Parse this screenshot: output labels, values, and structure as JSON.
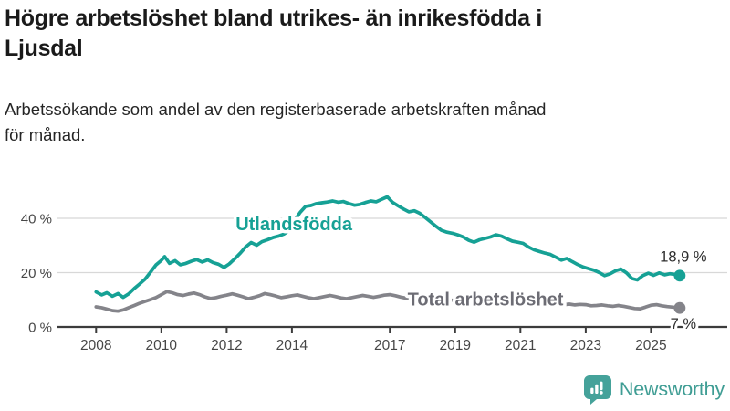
{
  "header": {
    "title": "Högre arbetslöshet bland utrikes- än inrikesfödda i\nLjusdal",
    "subtitle": "Arbetssökande som andel av den registerbaserade arbetskraften månad\nför månad."
  },
  "colors": {
    "accent_teal": "#16a195",
    "series_gray": "#84848a",
    "series_gray_label": "#6c6c74",
    "grid": "#d8d8d8",
    "axis": "#3c3c3c",
    "axis_text": "#474747",
    "annotation_text": "#2e2e2e",
    "logo_teal": "#45a29a",
    "logo_text_teal": "#3f9d94"
  },
  "branding": {
    "logo_text": "Newsworthy",
    "logo_icon": "speech-bubble-with-bar-chart-and-exclamation"
  },
  "chart_data": {
    "type": "line",
    "title": "Högre arbetslöshet bland utrikes- än inrikesfödda i Ljusdal",
    "subtitle": "Arbetssökande som andel av den registerbaserade arbetskraften månad för månad.",
    "unit": "%",
    "grid": true,
    "legend_position": "inline-labels",
    "x_axis": {
      "label": "",
      "ticks": [
        2008,
        2010,
        2012,
        2014,
        2017,
        2019,
        2021,
        2023,
        2025
      ],
      "range_years": [
        2006.8,
        2027.3
      ]
    },
    "y_axis": {
      "label": "",
      "ticks": [
        "0 %",
        "20 %",
        "40 %"
      ],
      "tick_values": [
        0,
        20,
        40
      ],
      "ylim": [
        0,
        50
      ]
    },
    "series": [
      {
        "name": "Utlandsfödda",
        "color": "#16a195",
        "label_color": "#16a195",
        "end_label": "18,9 %",
        "end_value": 18.9,
        "label_anchor": {
          "x": 2014.06,
          "y": 38.0
        },
        "points": [
          [
            2008.0,
            12.9
          ],
          [
            2008.17,
            11.8
          ],
          [
            2008.33,
            12.6
          ],
          [
            2008.5,
            11.3
          ],
          [
            2008.67,
            12.3
          ],
          [
            2008.83,
            10.9
          ],
          [
            2009.0,
            12.2
          ],
          [
            2009.17,
            14.2
          ],
          [
            2009.33,
            15.8
          ],
          [
            2009.5,
            17.6
          ],
          [
            2009.67,
            20.2
          ],
          [
            2009.83,
            22.8
          ],
          [
            2010.0,
            24.5
          ],
          [
            2010.1,
            25.9
          ],
          [
            2010.25,
            23.4
          ],
          [
            2010.42,
            24.4
          ],
          [
            2010.58,
            22.9
          ],
          [
            2010.75,
            23.4
          ],
          [
            2010.92,
            24.2
          ],
          [
            2011.08,
            24.8
          ],
          [
            2011.25,
            23.9
          ],
          [
            2011.42,
            24.7
          ],
          [
            2011.58,
            23.7
          ],
          [
            2011.75,
            23.1
          ],
          [
            2011.92,
            21.9
          ],
          [
            2012.08,
            23.2
          ],
          [
            2012.25,
            25.1
          ],
          [
            2012.42,
            27.2
          ],
          [
            2012.58,
            29.4
          ],
          [
            2012.75,
            31.1
          ],
          [
            2012.92,
            30.1
          ],
          [
            2013.08,
            31.4
          ],
          [
            2013.25,
            32.1
          ],
          [
            2013.42,
            32.9
          ],
          [
            2013.58,
            33.4
          ],
          [
            2013.75,
            34.2
          ],
          [
            2013.92,
            35.6
          ],
          [
            2014.08,
            39.2
          ],
          [
            2014.25,
            42.2
          ],
          [
            2014.42,
            44.4
          ],
          [
            2014.58,
            44.7
          ],
          [
            2014.75,
            45.4
          ],
          [
            2014.92,
            45.7
          ],
          [
            2015.08,
            46.0
          ],
          [
            2015.25,
            46.4
          ],
          [
            2015.42,
            45.9
          ],
          [
            2015.58,
            46.2
          ],
          [
            2015.75,
            45.4
          ],
          [
            2015.92,
            44.8
          ],
          [
            2016.08,
            45.1
          ],
          [
            2016.25,
            45.8
          ],
          [
            2016.42,
            46.4
          ],
          [
            2016.58,
            46.1
          ],
          [
            2016.75,
            47.0
          ],
          [
            2016.92,
            47.9
          ],
          [
            2017.08,
            45.9
          ],
          [
            2017.25,
            44.6
          ],
          [
            2017.42,
            43.4
          ],
          [
            2017.58,
            42.4
          ],
          [
            2017.75,
            42.8
          ],
          [
            2017.92,
            41.8
          ],
          [
            2018.08,
            40.3
          ],
          [
            2018.25,
            38.7
          ],
          [
            2018.42,
            37.0
          ],
          [
            2018.58,
            35.6
          ],
          [
            2018.75,
            34.9
          ],
          [
            2018.92,
            34.5
          ],
          [
            2019.08,
            33.9
          ],
          [
            2019.25,
            33.1
          ],
          [
            2019.42,
            31.9
          ],
          [
            2019.58,
            31.2
          ],
          [
            2019.75,
            32.1
          ],
          [
            2019.92,
            32.6
          ],
          [
            2020.08,
            33.1
          ],
          [
            2020.25,
            33.9
          ],
          [
            2020.42,
            33.4
          ],
          [
            2020.58,
            32.5
          ],
          [
            2020.75,
            31.6
          ],
          [
            2020.92,
            31.2
          ],
          [
            2021.08,
            30.8
          ],
          [
            2021.25,
            29.4
          ],
          [
            2021.42,
            28.4
          ],
          [
            2021.58,
            27.8
          ],
          [
            2021.75,
            27.2
          ],
          [
            2021.92,
            26.7
          ],
          [
            2022.08,
            25.7
          ],
          [
            2022.25,
            24.6
          ],
          [
            2022.42,
            25.2
          ],
          [
            2022.58,
            24.1
          ],
          [
            2022.75,
            23.0
          ],
          [
            2022.92,
            22.1
          ],
          [
            2023.08,
            21.5
          ],
          [
            2023.25,
            20.9
          ],
          [
            2023.42,
            20.0
          ],
          [
            2023.58,
            18.9
          ],
          [
            2023.75,
            19.6
          ],
          [
            2023.92,
            20.7
          ],
          [
            2024.08,
            21.3
          ],
          [
            2024.25,
            19.9
          ],
          [
            2024.42,
            17.8
          ],
          [
            2024.58,
            17.3
          ],
          [
            2024.75,
            18.9
          ],
          [
            2024.92,
            19.8
          ],
          [
            2025.08,
            19.0
          ],
          [
            2025.25,
            19.9
          ],
          [
            2025.42,
            19.2
          ],
          [
            2025.58,
            19.6
          ],
          [
            2025.75,
            19.3
          ],
          [
            2025.88,
            18.9
          ]
        ]
      },
      {
        "name": "Total arbetslöshet",
        "color": "#84848a",
        "label_color": "#6c6c74",
        "end_label": "7 %",
        "end_value": 7.0,
        "label_anchor": {
          "x": 2019.93,
          "y": 10.25
        },
        "points": [
          [
            2008.0,
            7.4
          ],
          [
            2008.17,
            7.1
          ],
          [
            2008.33,
            6.6
          ],
          [
            2008.5,
            6.0
          ],
          [
            2008.67,
            5.8
          ],
          [
            2008.83,
            6.3
          ],
          [
            2009.0,
            7.1
          ],
          [
            2009.17,
            7.9
          ],
          [
            2009.33,
            8.7
          ],
          [
            2009.5,
            9.4
          ],
          [
            2009.67,
            10.1
          ],
          [
            2009.83,
            10.8
          ],
          [
            2010.0,
            11.9
          ],
          [
            2010.17,
            13.0
          ],
          [
            2010.33,
            12.6
          ],
          [
            2010.5,
            11.9
          ],
          [
            2010.67,
            11.6
          ],
          [
            2010.83,
            12.1
          ],
          [
            2011.0,
            12.5
          ],
          [
            2011.17,
            11.9
          ],
          [
            2011.33,
            11.1
          ],
          [
            2011.5,
            10.5
          ],
          [
            2011.67,
            10.8
          ],
          [
            2011.83,
            11.3
          ],
          [
            2012.0,
            11.7
          ],
          [
            2012.17,
            12.2
          ],
          [
            2012.33,
            11.7
          ],
          [
            2012.5,
            11.1
          ],
          [
            2012.67,
            10.4
          ],
          [
            2012.83,
            10.9
          ],
          [
            2013.0,
            11.5
          ],
          [
            2013.17,
            12.3
          ],
          [
            2013.33,
            11.9
          ],
          [
            2013.5,
            11.4
          ],
          [
            2013.67,
            10.8
          ],
          [
            2013.83,
            11.1
          ],
          [
            2014.0,
            11.5
          ],
          [
            2014.17,
            11.8
          ],
          [
            2014.33,
            11.3
          ],
          [
            2014.5,
            10.8
          ],
          [
            2014.67,
            10.4
          ],
          [
            2014.83,
            10.8
          ],
          [
            2015.0,
            11.2
          ],
          [
            2015.17,
            11.6
          ],
          [
            2015.33,
            11.2
          ],
          [
            2015.5,
            10.7
          ],
          [
            2015.67,
            10.4
          ],
          [
            2015.83,
            10.8
          ],
          [
            2016.0,
            11.2
          ],
          [
            2016.17,
            11.6
          ],
          [
            2016.33,
            11.3
          ],
          [
            2016.5,
            10.9
          ],
          [
            2016.67,
            11.3
          ],
          [
            2016.83,
            11.7
          ],
          [
            2017.0,
            11.9
          ],
          [
            2017.17,
            11.5
          ],
          [
            2017.33,
            11.0
          ],
          [
            2017.5,
            10.6
          ],
          [
            2017.67,
            10.3
          ],
          [
            2017.83,
            10.6
          ],
          [
            2018.0,
            10.8
          ],
          [
            2018.17,
            10.4
          ],
          [
            2018.33,
            9.9
          ],
          [
            2018.5,
            9.6
          ],
          [
            2018.67,
            9.4
          ],
          [
            2018.83,
            9.7
          ],
          [
            2019.0,
            10.0
          ],
          [
            2019.17,
            9.7
          ],
          [
            2019.33,
            9.3
          ],
          [
            2019.5,
            9.1
          ],
          [
            2019.67,
            9.3
          ],
          [
            2019.83,
            9.6
          ],
          [
            2020.0,
            9.9
          ],
          [
            2020.17,
            10.7
          ],
          [
            2020.33,
            11.1
          ],
          [
            2020.5,
            10.9
          ],
          [
            2020.67,
            10.6
          ],
          [
            2020.83,
            10.8
          ],
          [
            2021.0,
            10.5
          ],
          [
            2021.17,
            10.1
          ],
          [
            2021.33,
            9.7
          ],
          [
            2021.5,
            9.3
          ],
          [
            2021.67,
            9.0
          ],
          [
            2021.83,
            8.8
          ],
          [
            2022.0,
            8.6
          ],
          [
            2022.17,
            8.4
          ],
          [
            2022.33,
            8.2
          ],
          [
            2022.5,
            8.4
          ],
          [
            2022.67,
            8.1
          ],
          [
            2022.83,
            8.3
          ],
          [
            2023.0,
            8.2
          ],
          [
            2023.17,
            7.8
          ],
          [
            2023.33,
            7.9
          ],
          [
            2023.5,
            8.1
          ],
          [
            2023.67,
            7.8
          ],
          [
            2023.83,
            7.6
          ],
          [
            2024.0,
            7.9
          ],
          [
            2024.17,
            7.6
          ],
          [
            2024.33,
            7.2
          ],
          [
            2024.5,
            6.8
          ],
          [
            2024.67,
            6.7
          ],
          [
            2024.83,
            7.3
          ],
          [
            2025.0,
            8.0
          ],
          [
            2025.17,
            8.2
          ],
          [
            2025.33,
            7.8
          ],
          [
            2025.5,
            7.5
          ],
          [
            2025.67,
            7.3
          ],
          [
            2025.88,
            7.0
          ]
        ]
      }
    ]
  }
}
